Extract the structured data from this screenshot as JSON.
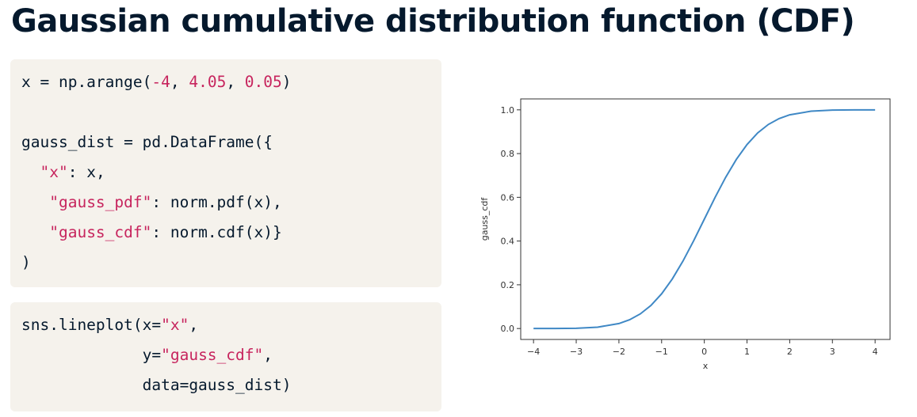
{
  "title": "Gaussian cumulative distribution function (CDF)",
  "colors": {
    "code_bg": "#f5f2ec",
    "string_token": "#c7255e",
    "number_token": "#c7255e",
    "text": "#05192d",
    "line": "#3f88c5"
  },
  "code_block_1": {
    "lines": [
      [
        {
          "t": "x = np.arange("
        },
        {
          "t": "-4",
          "k": "num"
        },
        {
          "t": ", "
        },
        {
          "t": "4.05",
          "k": "num"
        },
        {
          "t": ", "
        },
        {
          "t": "0.05",
          "k": "num"
        },
        {
          "t": ")"
        }
      ],
      [],
      [
        {
          "t": "gauss_dist = pd.DataFrame({"
        }
      ],
      [
        {
          "t": "  "
        },
        {
          "t": "\"x\"",
          "k": "str"
        },
        {
          "t": ": x,"
        }
      ],
      [
        {
          "t": "   "
        },
        {
          "t": "\"gauss_pdf\"",
          "k": "str"
        },
        {
          "t": ": norm.pdf(x),"
        }
      ],
      [
        {
          "t": "   "
        },
        {
          "t": "\"gauss_cdf\"",
          "k": "str"
        },
        {
          "t": ": norm.cdf(x)}"
        }
      ],
      [
        {
          "t": ")"
        }
      ]
    ]
  },
  "code_block_2": {
    "lines": [
      [
        {
          "t": "sns.lineplot(x="
        },
        {
          "t": "\"x\"",
          "k": "str"
        },
        {
          "t": ","
        }
      ],
      [
        {
          "t": "             y="
        },
        {
          "t": "\"gauss_cdf\"",
          "k": "str"
        },
        {
          "t": ","
        }
      ],
      [
        {
          "t": "             data=gauss_dist)"
        }
      ]
    ]
  },
  "chart_data": {
    "type": "line",
    "xlabel": "x",
    "ylabel": "gauss_cdf",
    "xlim": [
      -4.3,
      4.35
    ],
    "ylim": [
      -0.05,
      1.05
    ],
    "xticks": [
      -4,
      -3,
      -2,
      -1,
      0,
      1,
      2,
      3,
      4
    ],
    "xtick_labels": [
      "−4",
      "−3",
      "−2",
      "−1",
      "0",
      "1",
      "2",
      "3",
      "4"
    ],
    "yticks": [
      0.0,
      0.2,
      0.4,
      0.6,
      0.8,
      1.0
    ],
    "ytick_labels": [
      "0.0",
      "0.2",
      "0.4",
      "0.6",
      "0.8",
      "1.0"
    ],
    "grid": false,
    "series": [
      {
        "x": [
          -4.0,
          -3.5,
          -3.0,
          -2.5,
          -2.0,
          -1.75,
          -1.5,
          -1.25,
          -1.0,
          -0.75,
          -0.5,
          -0.25,
          0.0,
          0.25,
          0.5,
          0.75,
          1.0,
          1.25,
          1.5,
          1.75,
          2.0,
          2.5,
          3.0,
          3.5,
          4.0
        ],
        "y": [
          3e-05,
          0.0002,
          0.0013,
          0.0062,
          0.0228,
          0.0401,
          0.0668,
          0.1056,
          0.1587,
          0.2266,
          0.3085,
          0.4013,
          0.5,
          0.5987,
          0.6915,
          0.7734,
          0.8413,
          0.8944,
          0.9332,
          0.9599,
          0.9772,
          0.9938,
          0.9987,
          0.9998,
          0.99997
        ]
      }
    ]
  }
}
